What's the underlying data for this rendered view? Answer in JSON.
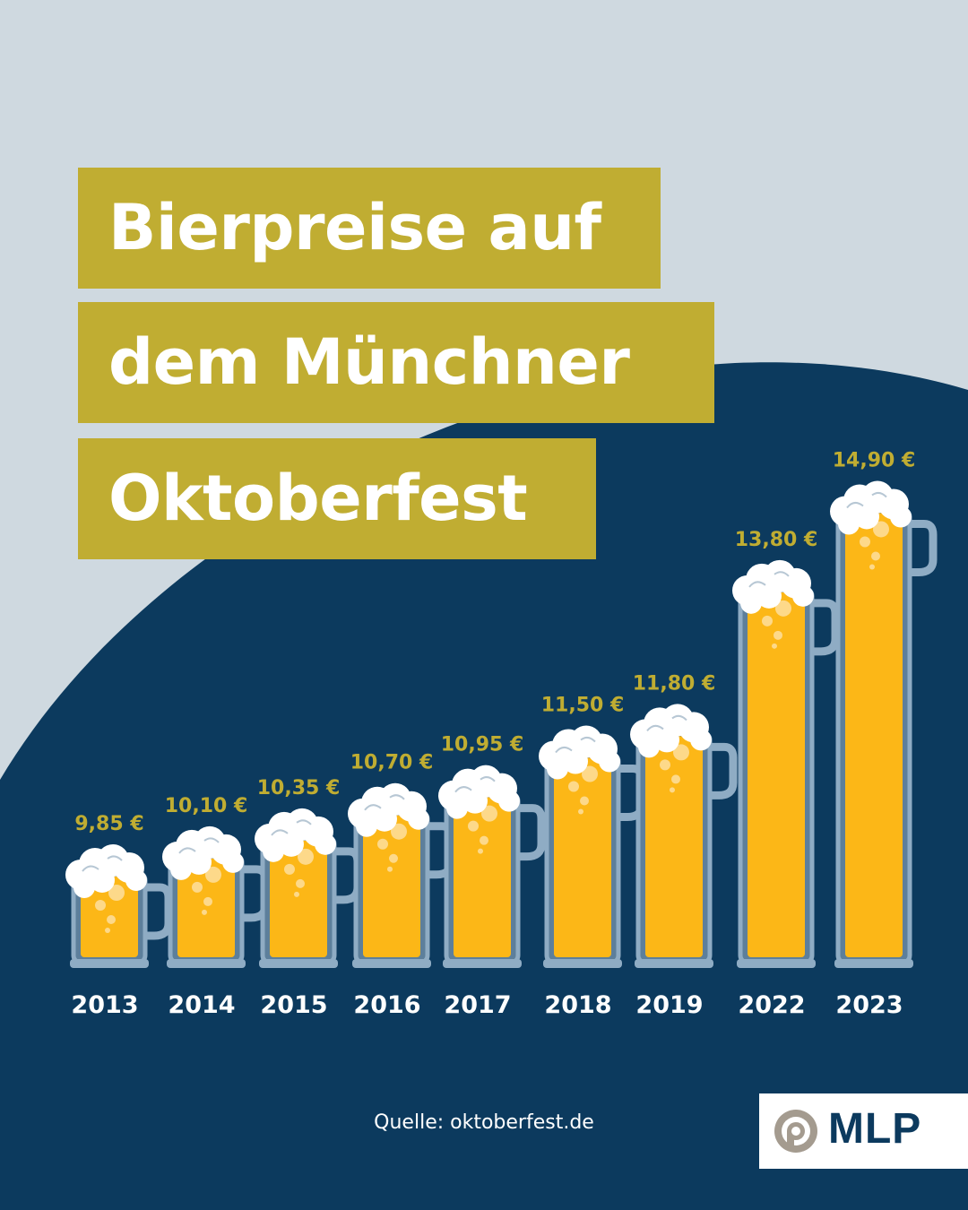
{
  "title": {
    "line1": "Bierpreise auf",
    "line2": "dem Münchner",
    "line3": "Oktoberfest"
  },
  "source": "Quelle: oktoberfest.de",
  "logo": {
    "text": "MLP"
  },
  "colors": {
    "background": "#cfd9e0",
    "navy": "#0c3a5e",
    "gold": "#c0ad32",
    "beer": "#fcb717",
    "glass": "#8facc4",
    "foam": "#ffffff"
  },
  "chart_data": {
    "type": "bar",
    "categories": [
      "2013",
      "2014",
      "2015",
      "2016",
      "2017",
      "2018",
      "2019",
      "2022",
      "2023"
    ],
    "values": [
      9.85,
      10.1,
      10.35,
      10.7,
      10.95,
      11.5,
      11.8,
      13.8,
      14.9
    ],
    "value_labels": [
      "9,85 €",
      "10,10 €",
      "10,35 €",
      "10,70 €",
      "10,95 €",
      "11,50 €",
      "11,80 €",
      "13,80 €",
      "14,90 €"
    ],
    "unit": "€",
    "mark_style": "beer-mug"
  }
}
